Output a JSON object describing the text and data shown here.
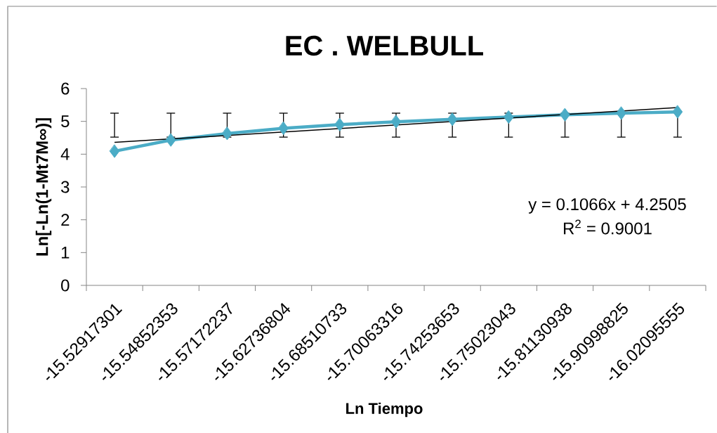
{
  "chart_data": {
    "type": "line",
    "title": "EC . WELBULL",
    "xlabel": "Ln Tiempo",
    "ylabel": "Ln[-Ln(1-Mt7M∞)]",
    "categories": [
      "-15.52917301",
      "-15.54852353",
      "-15.57172237",
      "-15.62736804",
      "-15.68510733",
      "-15.70063316",
      "-15.74253653",
      "-15.75023043",
      "-15.81130938",
      "-15.90998825",
      "-16.02095555"
    ],
    "series": [
      {
        "color": "#4bacc6",
        "values": [
          4.09,
          4.43,
          4.63,
          4.79,
          4.9,
          4.99,
          5.06,
          5.13,
          5.2,
          5.25,
          5.29
        ],
        "errors": [
          [
            4.52,
            5.25
          ],
          [
            4.52,
            5.25
          ],
          [
            4.52,
            5.25
          ],
          [
            4.52,
            5.25
          ],
          [
            4.52,
            5.25
          ],
          [
            4.52,
            5.25
          ],
          [
            4.52,
            5.25
          ],
          [
            4.52,
            5.25
          ],
          [
            4.52,
            5.25
          ],
          [
            4.52,
            5.25
          ],
          [
            4.52,
            5.29
          ]
        ]
      },
      {
        "type": "line",
        "color": "#000000",
        "x": [
          "-15.52917301",
          "-16.02095555"
        ],
        "values": [
          4.36,
          5.42
        ],
        "marker": "none"
      }
    ],
    "ylim": [
      0,
      6
    ],
    "yticks": [
      0,
      1,
      2,
      3,
      4,
      5,
      6
    ],
    "marker": "diamond",
    "line_style": "solid",
    "annotations": [
      "y = 0.1066x + 4.2505",
      "R$^{2}$ = 0.9001"
    ]
  }
}
